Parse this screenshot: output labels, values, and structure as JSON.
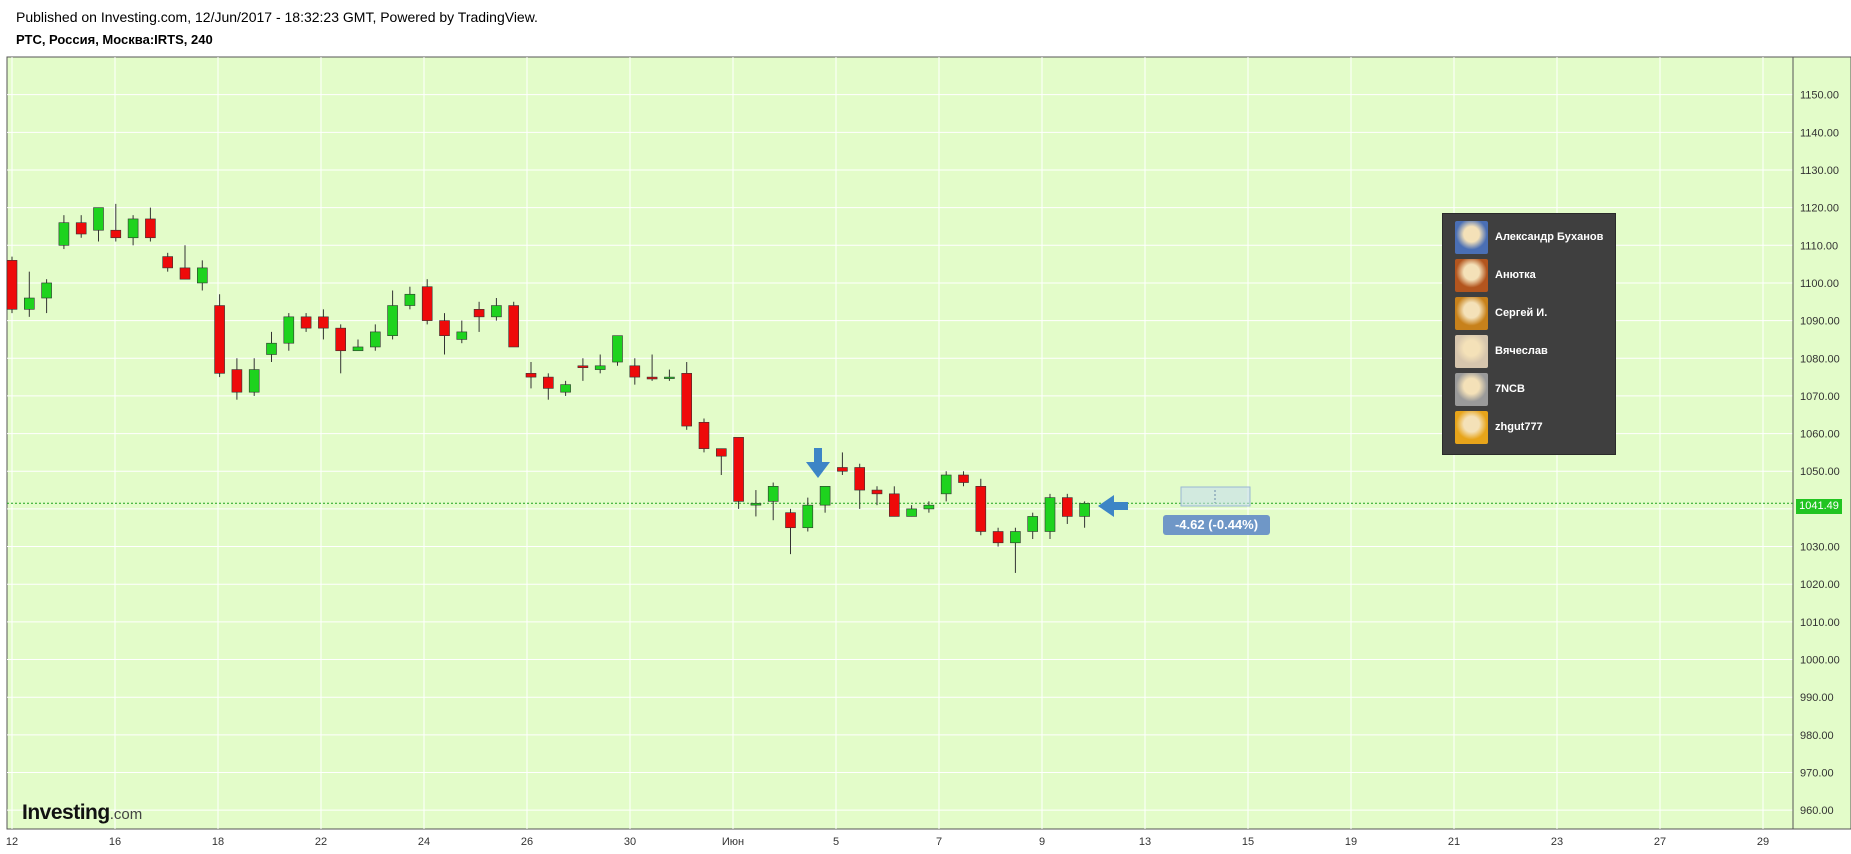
{
  "header": {
    "published": "Published on Investing.com, 12/Jun/2017 - 18:32:23 GMT, Powered by TradingView.",
    "symbol": "РТС, Россия, Москва:IRTS, 240"
  },
  "logo": {
    "text": "Investing",
    "suffix": ".com"
  },
  "last_price_label": "1041.49",
  "change_label": "-4.62 (-0.44%)",
  "legend": {
    "users": [
      {
        "name": "Александр Буханов",
        "avatar_color": "#4a6fb5"
      },
      {
        "name": "Анютка",
        "avatar_color": "#b3551e"
      },
      {
        "name": "Сергей И.",
        "avatar_color": "#c7811b"
      },
      {
        "name": "Вячеслав",
        "avatar_color": "#d6c5ad"
      },
      {
        "name": "7NCB",
        "avatar_color": "#9a9a9a"
      },
      {
        "name": "zhgut777",
        "avatar_color": "#e7a41a"
      }
    ]
  },
  "colors": {
    "background": "#e3fcc9",
    "up": "#1ed31e",
    "down": "#ee0a0a",
    "grid": "#ffffff",
    "last_price_line": "#1ea31e",
    "marker": "#3d85c6"
  },
  "chart_data": {
    "type": "candlestick",
    "title": "РТС, Россия, Москва:IRTS, 240",
    "y_axis": {
      "ylim": [
        955,
        1160
      ],
      "ticks": [
        "960.00",
        "970.00",
        "980.00",
        "990.00",
        "1000.00",
        "1010.00",
        "1020.00",
        "1030.00",
        "1040.00",
        "1050.00",
        "1060.00",
        "1070.00",
        "1080.00",
        "1090.00",
        "1100.00",
        "1110.00",
        "1120.00",
        "1130.00",
        "1140.00",
        "1150.00"
      ]
    },
    "x_axis": {
      "ticks": [
        "12",
        "16",
        "18",
        "22",
        "24",
        "26",
        "30",
        "Июн",
        "5",
        "7",
        "9",
        "13",
        "15",
        "19",
        "21",
        "23",
        "27",
        "29"
      ]
    },
    "last_price": 1041.49,
    "change": -4.62,
    "change_percent": -0.44,
    "grid": true,
    "candles": [
      {
        "o": 1106,
        "h": 1107,
        "l": 1092,
        "c": 1093
      },
      {
        "o": 1093,
        "h": 1103,
        "l": 1091,
        "c": 1096
      },
      {
        "o": 1096,
        "h": 1101,
        "l": 1092,
        "c": 1100
      },
      {
        "o": 1110,
        "h": 1118,
        "l": 1109,
        "c": 1116
      },
      {
        "o": 1116,
        "h": 1118,
        "l": 1112,
        "c": 1113
      },
      {
        "o": 1114,
        "h": 1120,
        "l": 1111,
        "c": 1120
      },
      {
        "o": 1114,
        "h": 1121,
        "l": 1111,
        "c": 1112
      },
      {
        "o": 1112,
        "h": 1118,
        "l": 1110,
        "c": 1117
      },
      {
        "o": 1117,
        "h": 1120,
        "l": 1111,
        "c": 1112
      },
      {
        "o": 1107,
        "h": 1108,
        "l": 1103,
        "c": 1104
      },
      {
        "o": 1104,
        "h": 1110,
        "l": 1101,
        "c": 1101
      },
      {
        "o": 1100,
        "h": 1106,
        "l": 1098,
        "c": 1104
      },
      {
        "o": 1094,
        "h": 1097,
        "l": 1075,
        "c": 1076
      },
      {
        "o": 1077,
        "h": 1080,
        "l": 1069,
        "c": 1071
      },
      {
        "o": 1071,
        "h": 1080,
        "l": 1070,
        "c": 1077
      },
      {
        "o": 1081,
        "h": 1087,
        "l": 1079,
        "c": 1084
      },
      {
        "o": 1084,
        "h": 1092,
        "l": 1082,
        "c": 1091
      },
      {
        "o": 1091,
        "h": 1092,
        "l": 1087,
        "c": 1088
      },
      {
        "o": 1091,
        "h": 1093,
        "l": 1085,
        "c": 1088
      },
      {
        "o": 1088,
        "h": 1089,
        "l": 1076,
        "c": 1082
      },
      {
        "o": 1082,
        "h": 1085,
        "l": 1082,
        "c": 1083
      },
      {
        "o": 1083,
        "h": 1089,
        "l": 1082,
        "c": 1087
      },
      {
        "o": 1086,
        "h": 1098,
        "l": 1085,
        "c": 1094
      },
      {
        "o": 1094,
        "h": 1099,
        "l": 1093,
        "c": 1097
      },
      {
        "o": 1099,
        "h": 1101,
        "l": 1089,
        "c": 1090
      },
      {
        "o": 1090,
        "h": 1092,
        "l": 1081,
        "c": 1086
      },
      {
        "o": 1085,
        "h": 1090,
        "l": 1084,
        "c": 1087
      },
      {
        "o": 1093,
        "h": 1095,
        "l": 1087,
        "c": 1091
      },
      {
        "o": 1091,
        "h": 1096,
        "l": 1090,
        "c": 1094
      },
      {
        "o": 1094,
        "h": 1095,
        "l": 1083,
        "c": 1083
      },
      {
        "o": 1076,
        "h": 1079,
        "l": 1072,
        "c": 1075
      },
      {
        "o": 1075,
        "h": 1076,
        "l": 1069,
        "c": 1072
      },
      {
        "o": 1071,
        "h": 1074,
        "l": 1070,
        "c": 1073
      },
      {
        "o": 1078,
        "h": 1080,
        "l": 1074,
        "c": 1077.5
      },
      {
        "o": 1077,
        "h": 1081,
        "l": 1076,
        "c": 1078
      },
      {
        "o": 1079,
        "h": 1086,
        "l": 1078,
        "c": 1086
      },
      {
        "o": 1078,
        "h": 1080,
        "l": 1073,
        "c": 1075
      },
      {
        "o": 1075,
        "h": 1081,
        "l": 1074,
        "c": 1074.5
      },
      {
        "o": 1075,
        "h": 1077,
        "l": 1074,
        "c": 1075
      },
      {
        "o": 1076,
        "h": 1079,
        "l": 1061,
        "c": 1062
      },
      {
        "o": 1063,
        "h": 1064,
        "l": 1055,
        "c": 1056
      },
      {
        "o": 1056,
        "h": 1056,
        "l": 1049,
        "c": 1054
      },
      {
        "o": 1059,
        "h": 1059,
        "l": 1040,
        "c": 1042
      },
      {
        "o": 1041,
        "h": 1045,
        "l": 1038,
        "c": 1041.5
      },
      {
        "o": 1042,
        "h": 1047,
        "l": 1037,
        "c": 1046
      },
      {
        "o": 1039,
        "h": 1040,
        "l": 1028,
        "c": 1035
      },
      {
        "o": 1035,
        "h": 1043,
        "l": 1034,
        "c": 1041
      },
      {
        "o": 1041,
        "h": 1046,
        "l": 1039,
        "c": 1046
      },
      {
        "o": 1051,
        "h": 1055,
        "l": 1049,
        "c": 1050
      },
      {
        "o": 1051,
        "h": 1052,
        "l": 1040,
        "c": 1045
      },
      {
        "o": 1045,
        "h": 1046,
        "l": 1041,
        "c": 1044
      },
      {
        "o": 1044,
        "h": 1046,
        "l": 1038,
        "c": 1038
      },
      {
        "o": 1038,
        "h": 1041,
        "l": 1038,
        "c": 1040
      },
      {
        "o": 1040,
        "h": 1042,
        "l": 1039,
        "c": 1041
      },
      {
        "o": 1044,
        "h": 1050,
        "l": 1042,
        "c": 1049
      },
      {
        "o": 1049,
        "h": 1050,
        "l": 1046,
        "c": 1047
      },
      {
        "o": 1046,
        "h": 1048,
        "l": 1033,
        "c": 1034
      },
      {
        "o": 1034,
        "h": 1035,
        "l": 1030,
        "c": 1031
      },
      {
        "o": 1031,
        "h": 1035,
        "l": 1023,
        "c": 1034
      },
      {
        "o": 1034,
        "h": 1039,
        "l": 1032,
        "c": 1038
      },
      {
        "o": 1034,
        "h": 1044,
        "l": 1032,
        "c": 1043
      },
      {
        "o": 1043,
        "h": 1044,
        "l": 1036,
        "c": 1038
      },
      {
        "o": 1038,
        "h": 1042,
        "l": 1035,
        "c": 1041.49
      }
    ]
  }
}
